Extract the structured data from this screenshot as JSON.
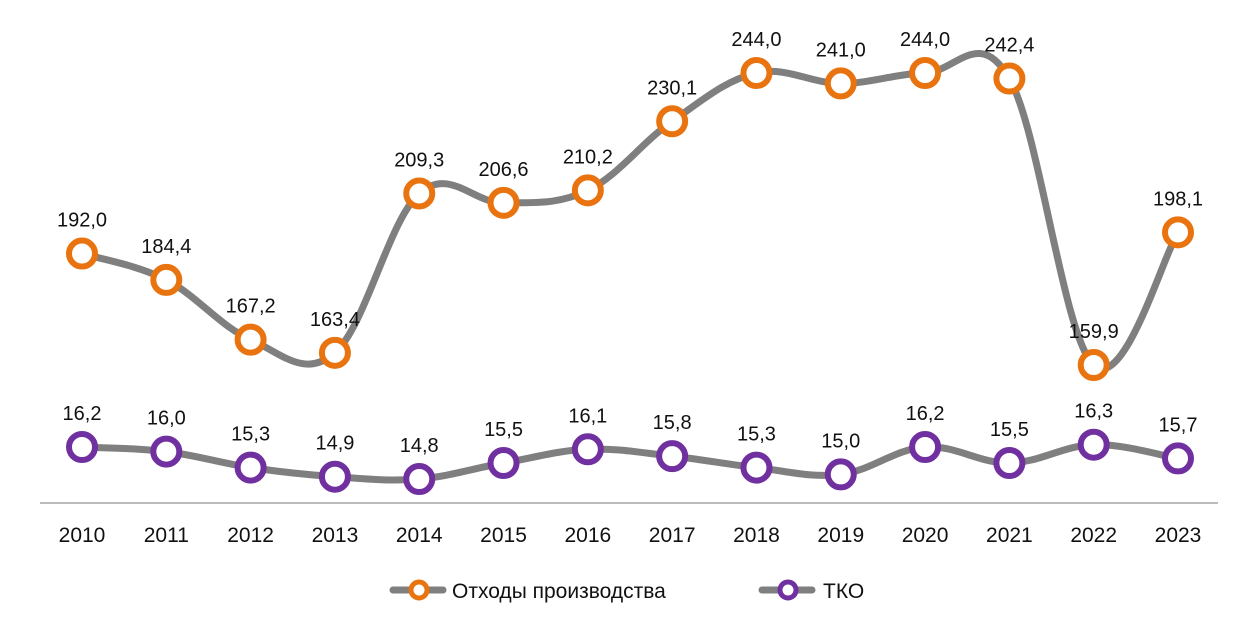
{
  "chart_data": {
    "type": "line",
    "x": [
      "2010",
      "2011",
      "2012",
      "2013",
      "2014",
      "2015",
      "2016",
      "2017",
      "2018",
      "2019",
      "2020",
      "2021",
      "2022",
      "2023"
    ],
    "series": [
      {
        "name": "Отходы производства",
        "values": [
          192.0,
          184.4,
          167.2,
          163.4,
          209.3,
          206.6,
          210.2,
          230.1,
          244.0,
          241.0,
          244.0,
          242.4,
          159.9,
          198.1
        ],
        "labels": [
          "192,0",
          "184,4",
          "167,2",
          "163,4",
          "209,3",
          "206,6",
          "210,2",
          "230,1",
          "244,0",
          "241,0",
          "244,0",
          "242,4",
          "159,9",
          "198,1"
        ],
        "line_color": "#7f7f7f",
        "marker_color": "#e8730f"
      },
      {
        "name": "ТКО",
        "values": [
          16.2,
          16.0,
          15.3,
          14.9,
          14.8,
          15.5,
          16.1,
          15.8,
          15.3,
          15.0,
          16.2,
          15.5,
          16.3,
          15.7
        ],
        "labels": [
          "16,2",
          "16,0",
          "15,3",
          "14,9",
          "14,8",
          "15,5",
          "16,1",
          "15,8",
          "15,3",
          "15,0",
          "16,2",
          "15,5",
          "16,3",
          "15,7"
        ],
        "line_color": "#7f7f7f",
        "marker_color": "#7030a0"
      }
    ],
    "legend_position": "bottom",
    "grid": false,
    "smooth": true
  }
}
